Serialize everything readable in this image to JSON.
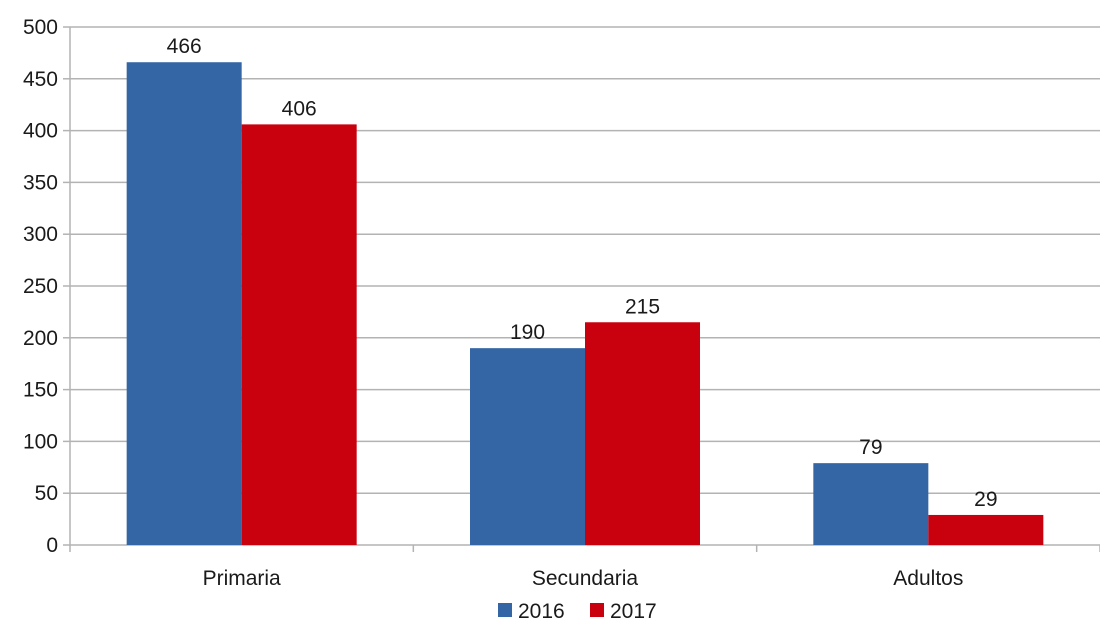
{
  "chart_data": {
    "type": "bar",
    "categories": [
      "Primaria",
      "Secundaria",
      "Adultos"
    ],
    "series": [
      {
        "name": "2016",
        "values": [
          466,
          190,
          79
        ],
        "color": "#3465a4"
      },
      {
        "name": "2017",
        "values": [
          406,
          215,
          29
        ],
        "color": "#c9000e"
      }
    ],
    "ylim": [
      0,
      500
    ],
    "yticks": [
      0,
      50,
      100,
      150,
      200,
      250,
      300,
      350,
      400,
      450,
      500
    ],
    "grid": true,
    "legend_position": "bottom",
    "data_labels": true,
    "title": "",
    "xlabel": "",
    "ylabel": ""
  }
}
